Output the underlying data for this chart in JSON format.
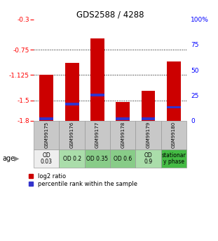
{
  "title": "GDS2588 / 4288",
  "samples": [
    "GSM99175",
    "GSM99176",
    "GSM99177",
    "GSM99178",
    "GSM99179",
    "GSM99180"
  ],
  "log2_values": [
    -1.125,
    -0.95,
    -0.585,
    -1.52,
    -1.355,
    -0.92
  ],
  "blue_marker_centers": [
    -1.775,
    -1.555,
    -1.42,
    -1.775,
    -1.77,
    -1.6
  ],
  "ylim_left": [
    -1.8,
    -0.3
  ],
  "ylim_right": [
    0,
    100
  ],
  "yticks_left": [
    -1.8,
    -1.5,
    -1.125,
    -0.75,
    -0.3
  ],
  "yticks_right": [
    0,
    25,
    50,
    75,
    100
  ],
  "ytick_labels_left": [
    "-1.8",
    "-1.5",
    "-1.125",
    "-0.75",
    "-0.3"
  ],
  "ytick_labels_right": [
    "0",
    "25",
    "50",
    "75",
    "100%"
  ],
  "hlines": [
    -0.75,
    -1.125,
    -1.5
  ],
  "bar_color": "#cc0000",
  "blue_color": "#3333cc",
  "sample_bg_color": "#c8c8c8",
  "age_labels": [
    "OD\n0.03",
    "OD 0.2",
    "OD 0.35",
    "OD 0.6",
    "OD\n0.9",
    "stationar\ny phase"
  ],
  "age_bg_colors": [
    "#eeeeee",
    "#aaddaa",
    "#88cc88",
    "#88cc88",
    "#aaddaa",
    "#44bb44"
  ],
  "legend_red": "log2 ratio",
  "legend_blue": "percentile rank within the sample"
}
